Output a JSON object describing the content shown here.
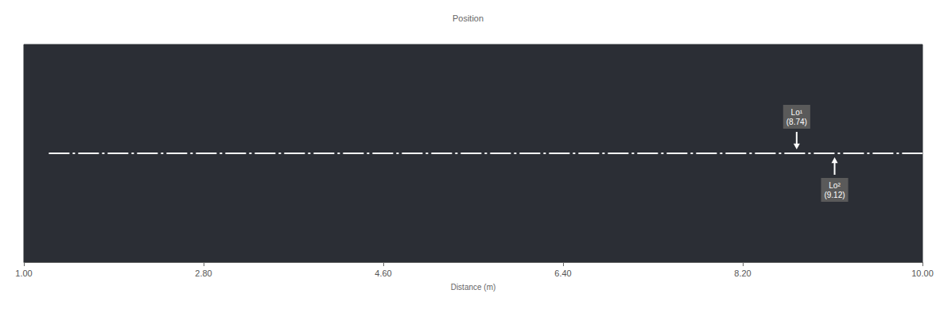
{
  "chart_data": {
    "type": "line",
    "title": "Position",
    "x_label": "Distance (m)",
    "x": [
      1.25,
      10
    ],
    "values": [
      0,
      0
    ],
    "color": "#ffffff",
    "line_style": "dashed",
    "xlim": [
      1,
      10
    ],
    "xticks": [
      {
        "value": 1,
        "label": "1.00"
      },
      {
        "value": 2.8,
        "label": "2.80"
      },
      {
        "value": 4.6,
        "label": "4.60"
      },
      {
        "value": 6.4,
        "label": "6.40"
      },
      {
        "value": 8.2,
        "label": "8.20"
      },
      {
        "value": 10,
        "label": "10.00"
      }
    ],
    "ylim": [
      -1,
      1
    ],
    "tick_labels": "x",
    "grid": false,
    "annotations": [
      {
        "x": 8.74,
        "y": 0,
        "text": "Lo¹ (8.74)"
      },
      {
        "x": 9.12,
        "y": 0,
        "text": "Lo² (9.12)"
      }
    ]
  }
}
